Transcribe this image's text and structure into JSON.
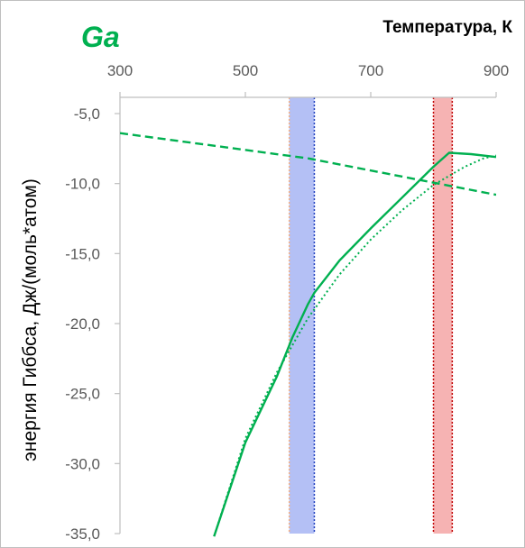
{
  "chart_data": {
    "type": "line",
    "title": "Ga",
    "xlabel": "Температура, К",
    "ylabel": "энергия Гиббса, Дж/(моль*атом)",
    "xlim": [
      300,
      900
    ],
    "ylim": [
      -35,
      -5
    ],
    "x_ticks": [
      {
        "value": 300,
        "label": "300"
      },
      {
        "value": 500,
        "label": "500"
      },
      {
        "value": 700,
        "label": "700"
      },
      {
        "value": 900,
        "label": "900"
      }
    ],
    "y_ticks": [
      {
        "value": -5,
        "label": "-5,0"
      },
      {
        "value": -10,
        "label": "-10,0"
      },
      {
        "value": -15,
        "label": "-15,0"
      },
      {
        "value": -20,
        "label": "-20,0"
      },
      {
        "value": -25,
        "label": "-25,0"
      },
      {
        "value": -30,
        "label": "-30,0"
      },
      {
        "value": -35,
        "label": "-35,0"
      }
    ],
    "grid": false,
    "x_axis_position": "top",
    "bands": [
      {
        "x0": 570,
        "x1": 610,
        "color": "#b4c0f5",
        "left_border": "#f4b183",
        "right_border": "#1f3fbf"
      },
      {
        "x0": 800,
        "x1": 830,
        "color": "#f6b3b3",
        "left_border": "#c00000",
        "right_border": "#c00000"
      }
    ],
    "series": [
      {
        "style": "dashed",
        "color": "#00b050",
        "x": [
          300,
          600,
          900
        ],
        "y": [
          -6.4,
          -8.2,
          -10.8
        ]
      },
      {
        "style": "solid",
        "color": "#00b050",
        "x": [
          450,
          500,
          550,
          575,
          600,
          610,
          650,
          700,
          750,
          800,
          825,
          860,
          900
        ],
        "y": [
          -35.2,
          -28.5,
          -23.8,
          -21.0,
          -18.6,
          -17.8,
          -15.5,
          -13.2,
          -11.0,
          -8.8,
          -7.8,
          -7.9,
          -8.1
        ]
      },
      {
        "style": "dotted",
        "color": "#00b050",
        "x": [
          450,
          500,
          550,
          600,
          650,
          700,
          750,
          800,
          850,
          880,
          900
        ],
        "y": [
          -35.2,
          -28.2,
          -23.5,
          -19.6,
          -16.5,
          -14.0,
          -11.9,
          -10.1,
          -8.8,
          -8.2,
          -8.0
        ]
      }
    ],
    "colors": {
      "title": "#00b050",
      "axis": "#bfbfbf",
      "tick_text": "#595959"
    }
  }
}
